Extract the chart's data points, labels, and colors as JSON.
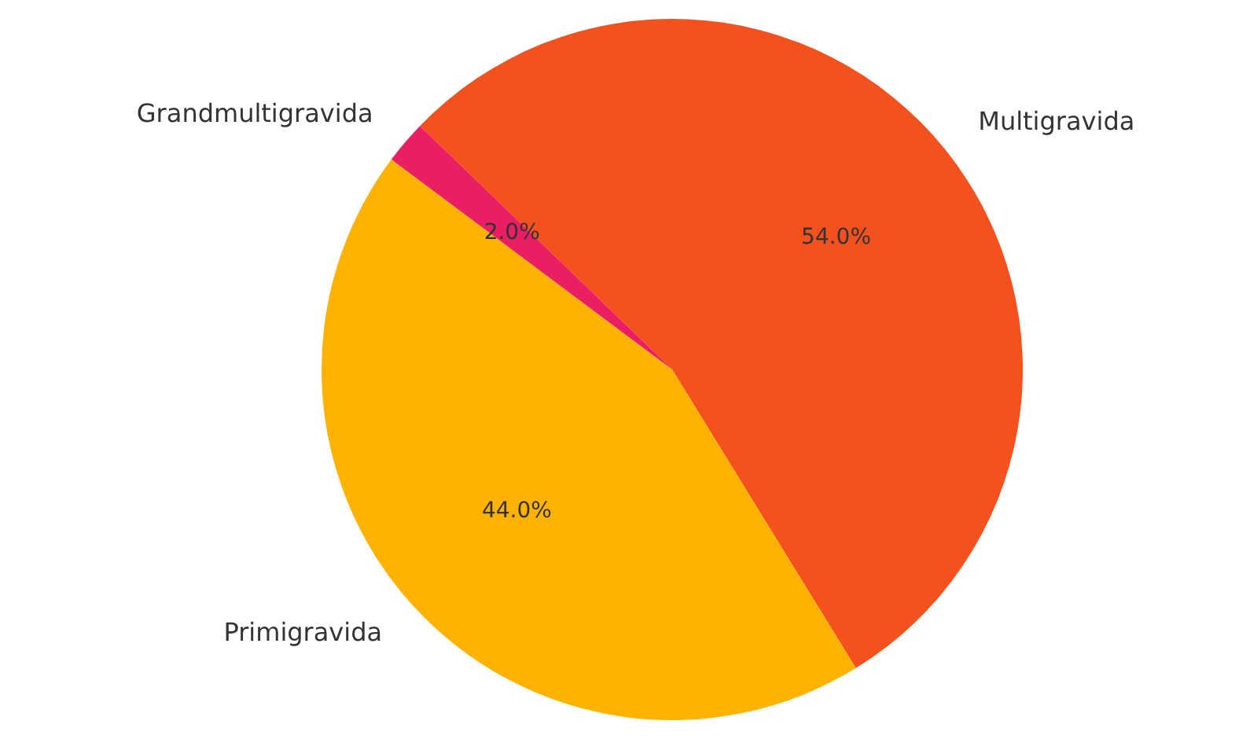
{
  "chart_data": {
    "type": "pie",
    "categories": [
      "Multigravida",
      "Primigravida",
      "Grandmultigravida"
    ],
    "values": [
      54,
      44,
      2
    ],
    "colors": [
      "#f4511e",
      "#ffb300",
      "#e91e63"
    ],
    "value_labels": [
      "54.0%",
      "44.0%",
      "2.0%"
    ],
    "legend": false
  }
}
